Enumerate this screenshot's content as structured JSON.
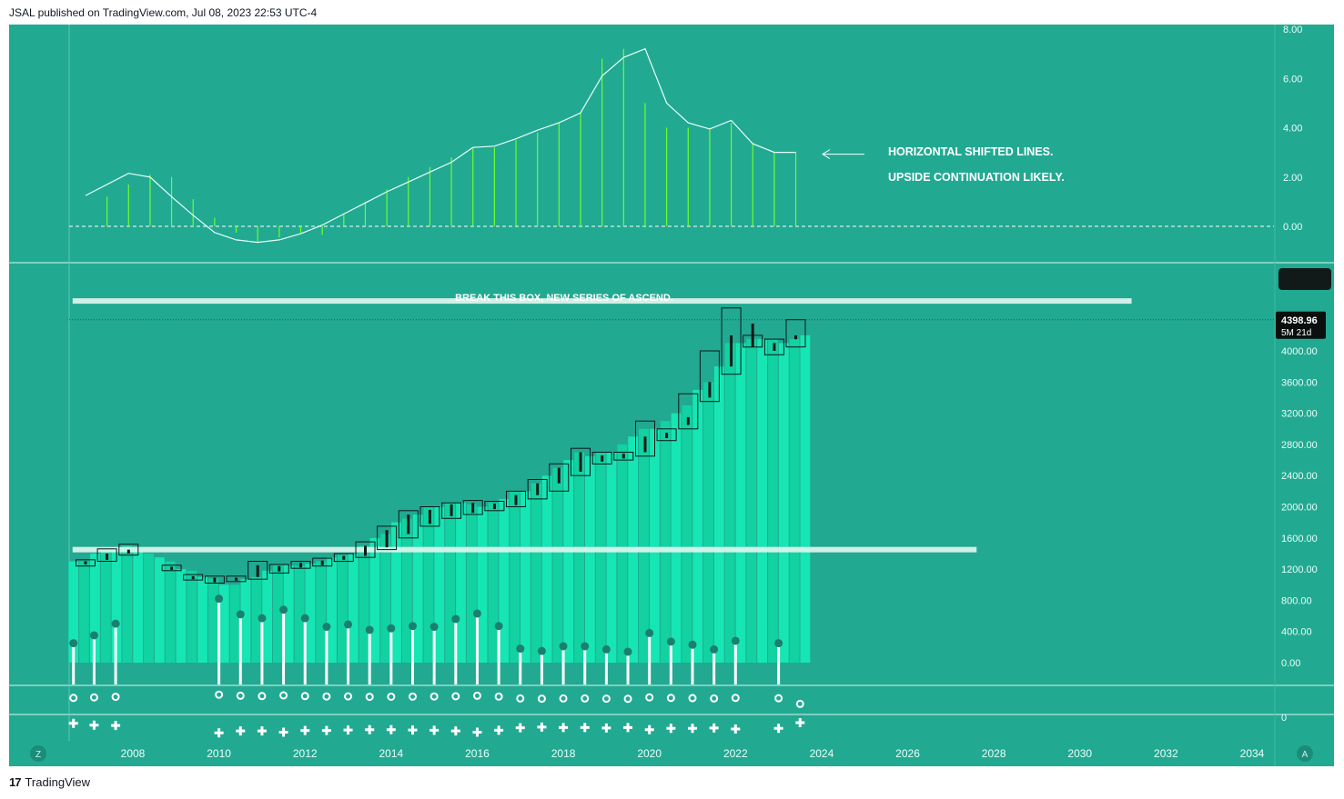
{
  "header": {
    "publisher_line": "JSAL published on TradingView.com, Jul 08, 2023 22:53 UTC-4"
  },
  "footer": {
    "brand": "TradingView",
    "logo_glyph": "17"
  },
  "colors": {
    "background": "#22a992",
    "bar_fill": "#16e6b4",
    "bar_fill_alt": "#12d2a2",
    "candle_box": "#0e1a17",
    "indicator_line": "#e8fff8",
    "histogram": "#6cff2e",
    "white": "#ffffff",
    "price_tag_bg": "#0b0f0e"
  },
  "corner_buttons": {
    "left": "Z",
    "right": "A"
  },
  "chart_data": [
    {
      "type": "line",
      "panel": "indicator",
      "y_ticks": [
        "8.00",
        "6.00",
        "4.00",
        "2.00",
        "0.00"
      ],
      "ylim": [
        -1.0,
        8.0
      ],
      "x": [
        2006.9,
        2007.9,
        2008.4,
        2008.9,
        2009.4,
        2009.9,
        2010.4,
        2010.9,
        2011.4,
        2011.9,
        2012.4,
        2012.9,
        2013.4,
        2013.9,
        2014.4,
        2014.9,
        2015.4,
        2015.9,
        2016.4,
        2016.9,
        2017.4,
        2017.9,
        2018.4,
        2018.9,
        2019.4,
        2019.9,
        2020.4,
        2020.9,
        2021.4,
        2021.9,
        2022.4,
        2022.9,
        2023.4
      ],
      "line_values": [
        1.25,
        2.15,
        2.0,
        1.2,
        0.45,
        -0.25,
        -0.55,
        -0.65,
        -0.55,
        -0.3,
        0.05,
        0.5,
        0.95,
        1.4,
        1.8,
        2.2,
        2.6,
        3.2,
        3.25,
        3.55,
        3.9,
        4.2,
        4.6,
        6.1,
        6.85,
        7.2,
        5.0,
        4.2,
        3.95,
        4.3,
        3.35,
        3.0,
        3.0
      ],
      "histogram": {
        "x": [
          2007.4,
          2007.9,
          2008.4,
          2008.9,
          2009.4,
          2009.9,
          2010.4,
          2010.9,
          2011.4,
          2011.9,
          2012.4,
          2012.9,
          2013.4,
          2013.9,
          2014.4,
          2014.9,
          2015.4,
          2015.9,
          2016.4,
          2016.9,
          2017.4,
          2017.9,
          2018.4,
          2018.9,
          2019.4,
          2019.9,
          2020.4,
          2020.9,
          2021.4,
          2021.9,
          2022.4,
          2022.9,
          2023.4
        ],
        "values": [
          1.2,
          1.7,
          2.1,
          2.0,
          1.1,
          0.35,
          -0.25,
          -0.65,
          -0.45,
          -0.3,
          -0.35,
          0.5,
          1.0,
          1.5,
          2.0,
          2.4,
          2.8,
          3.2,
          3.2,
          3.5,
          3.8,
          4.2,
          4.6,
          6.8,
          7.2,
          5.0,
          4.0,
          4.0,
          4.0,
          4.2,
          3.4,
          3.0,
          3.0
        ]
      },
      "zero_line": 0.0,
      "annotation_arrow_at": 3.0,
      "annotations": [
        "HORIZONTAL SHIFTED LINES.",
        "UPSIDE CONTINUATION LIKELY."
      ]
    },
    {
      "type": "bar",
      "panel": "price",
      "y_ticks": [
        "4000.00",
        "3600.00",
        "3200.00",
        "2800.00",
        "2400.00",
        "2000.00",
        "1600.00",
        "1200.00",
        "800.00",
        "400.00",
        "0.00"
      ],
      "ylim": [
        -200,
        5000
      ],
      "x_ticks": [
        "2008",
        "2010",
        "2012",
        "2014",
        "2016",
        "2018",
        "2020",
        "2022",
        "2024",
        "2026",
        "2028",
        "2030",
        "2032",
        "2034"
      ],
      "xlim": [
        2006.6,
        2035.2
      ],
      "bars": {
        "x": [
          2006.62,
          2006.87,
          2007.12,
          2007.37,
          2007.62,
          2007.87,
          2008.12,
          2008.37,
          2008.62,
          2008.87,
          2009.12,
          2009.37,
          2009.62,
          2009.87,
          2010.12,
          2010.37,
          2010.62,
          2010.87,
          2011.12,
          2011.37,
          2011.62,
          2011.87,
          2012.12,
          2012.37,
          2012.62,
          2012.87,
          2013.12,
          2013.37,
          2013.62,
          2013.87,
          2014.12,
          2014.37,
          2014.62,
          2014.87,
          2015.12,
          2015.37,
          2015.62,
          2015.87,
          2016.12,
          2016.37,
          2016.62,
          2016.87,
          2017.12,
          2017.37,
          2017.62,
          2017.87,
          2018.12,
          2018.37,
          2018.62,
          2018.87,
          2019.12,
          2019.37,
          2019.62,
          2019.87,
          2020.12,
          2020.37,
          2020.62,
          2020.87,
          2021.12,
          2021.37,
          2021.62,
          2021.87,
          2022.12,
          2022.37,
          2022.62,
          2022.87,
          2023.12,
          2023.37,
          2023.62
        ],
        "values": [
          1300,
          1300,
          1400,
          1450,
          1480,
          1500,
          1450,
          1400,
          1350,
          1300,
          1200,
          1180,
          1100,
          1080,
          1000,
          1000,
          1070,
          1100,
          1180,
          1250,
          1250,
          1240,
          1270,
          1300,
          1350,
          1380,
          1400,
          1500,
          1600,
          1650,
          1800,
          1850,
          1900,
          2000,
          2000,
          2050,
          2050,
          2030,
          2000,
          2050,
          2100,
          2200,
          2200,
          2300,
          2400,
          2500,
          2600,
          2700,
          2650,
          2700,
          2700,
          2800,
          2900,
          3000,
          3000,
          3100,
          3200,
          3300,
          3500,
          3600,
          3800,
          4100,
          4100,
          4150,
          4150,
          4150,
          4100,
          4150,
          4200
        ]
      },
      "candles": {
        "x": [
          2006.9,
          2007.4,
          2007.9,
          2008.9,
          2009.4,
          2009.9,
          2010.4,
          2010.9,
          2011.4,
          2011.9,
          2012.4,
          2012.9,
          2013.4,
          2013.9,
          2014.4,
          2014.9,
          2015.4,
          2015.9,
          2016.4,
          2016.9,
          2017.4,
          2017.9,
          2018.4,
          2018.9,
          2019.4,
          2019.9,
          2020.4,
          2020.9,
          2021.4,
          2021.9,
          2022.4,
          2022.9,
          2023.4
        ],
        "low": [
          1240,
          1300,
          1380,
          1180,
          1060,
          1020,
          1040,
          1070,
          1150,
          1210,
          1240,
          1300,
          1350,
          1450,
          1600,
          1750,
          1850,
          1900,
          1950,
          2000,
          2100,
          2200,
          2400,
          2550,
          2600,
          2650,
          2850,
          3000,
          3350,
          3700,
          4050,
          3950,
          4050
        ],
        "high": [
          1320,
          1460,
          1520,
          1250,
          1130,
          1110,
          1110,
          1300,
          1260,
          1300,
          1340,
          1400,
          1550,
          1750,
          1950,
          2000,
          2050,
          2080,
          2070,
          2200,
          2350,
          2550,
          2750,
          2700,
          2700,
          3100,
          3000,
          3450,
          4000,
          4550,
          4200,
          4150,
          4400
        ],
        "wick_low": [
          1260,
          1320,
          1400,
          1190,
          1070,
          1030,
          1050,
          1100,
          1170,
          1220,
          1250,
          1320,
          1370,
          1480,
          1650,
          1780,
          1880,
          1920,
          1970,
          2020,
          2150,
          2300,
          2450,
          2580,
          2620,
          2700,
          2880,
          3050,
          3400,
          3800,
          4050,
          4000,
          4150
        ],
        "wick_high": [
          1300,
          1400,
          1450,
          1230,
          1110,
          1090,
          1090,
          1250,
          1240,
          1280,
          1310,
          1370,
          1500,
          1700,
          1900,
          1960,
          2030,
          2050,
          2040,
          2150,
          2300,
          2500,
          2700,
          2660,
          2680,
          2900,
          2950,
          3150,
          3600,
          4200,
          4350,
          4100,
          4200
        ]
      },
      "lollipops": {
        "x": [
          2006.62,
          2007.1,
          2007.6,
          2010.0,
          2010.5,
          2011.0,
          2011.5,
          2012.0,
          2012.5,
          2013.0,
          2013.5,
          2014.0,
          2014.5,
          2015.0,
          2015.5,
          2016.0,
          2016.5,
          2017.0,
          2017.5,
          2018.0,
          2018.5,
          2019.0,
          2019.5,
          2020.0,
          2020.5,
          2021.0,
          2021.5,
          2022.0,
          2023.0
        ],
        "values": [
          250,
          350,
          500,
          820,
          620,
          570,
          680,
          570,
          460,
          490,
          420,
          440,
          470,
          460,
          560,
          630,
          470,
          180,
          150,
          210,
          210,
          170,
          140,
          380,
          270,
          230,
          170,
          280,
          250
        ]
      },
      "boxes": [
        {
          "x0": 2006.6,
          "x1": 2031.2,
          "y": 4640,
          "label": "BREAK THIS BOX, NEW SERIES OF ASCEND."
        },
        {
          "x0": 2006.6,
          "x1": 2027.6,
          "y": 1450,
          "label": ""
        }
      ],
      "last_price": {
        "value": "4398.96",
        "period": "5M 21d"
      }
    },
    {
      "type": "scatter",
      "panel": "circles",
      "x": [
        2006.62,
        2007.1,
        2007.6,
        2010.0,
        2010.5,
        2011.0,
        2011.5,
        2012.0,
        2012.5,
        2013.0,
        2013.5,
        2014.0,
        2014.5,
        2015.0,
        2015.5,
        2016.0,
        2016.5,
        2017.0,
        2017.5,
        2018.0,
        2018.5,
        2019.0,
        2019.5,
        2020.0,
        2020.5,
        2021.0,
        2021.5,
        2022.0,
        2023.0,
        2023.5
      ],
      "values": [
        0.35,
        0.4,
        0.45,
        0.65,
        0.55,
        0.52,
        0.58,
        0.52,
        0.48,
        0.49,
        0.45,
        0.46,
        0.47,
        0.48,
        0.5,
        0.55,
        0.47,
        0.3,
        0.28,
        0.3,
        0.3,
        0.28,
        0.27,
        0.4,
        0.35,
        0.33,
        0.3,
        0.35,
        0.32,
        -0.2
      ]
    },
    {
      "type": "scatter",
      "panel": "crosses",
      "y_ticks": [
        "0"
      ],
      "x": [
        2006.62,
        2007.1,
        2007.6,
        2010.0,
        2010.5,
        2011.0,
        2011.5,
        2012.0,
        2012.5,
        2013.0,
        2013.5,
        2014.0,
        2014.5,
        2015.0,
        2015.5,
        2016.0,
        2016.5,
        2017.0,
        2017.5,
        2018.0,
        2018.5,
        2019.0,
        2019.5,
        2020.0,
        2020.5,
        2021.0,
        2021.5,
        2022.0,
        2023.0,
        2023.5
      ],
      "values": [
        0.45,
        0.3,
        0.28,
        -0.3,
        -0.15,
        -0.15,
        -0.25,
        -0.12,
        -0.12,
        -0.08,
        -0.05,
        -0.05,
        -0.08,
        -0.1,
        -0.15,
        -0.25,
        -0.1,
        0.1,
        0.15,
        0.12,
        0.12,
        0.08,
        0.12,
        -0.05,
        0.05,
        0.05,
        0.08,
        0.0,
        0.05,
        0.5
      ]
    }
  ]
}
